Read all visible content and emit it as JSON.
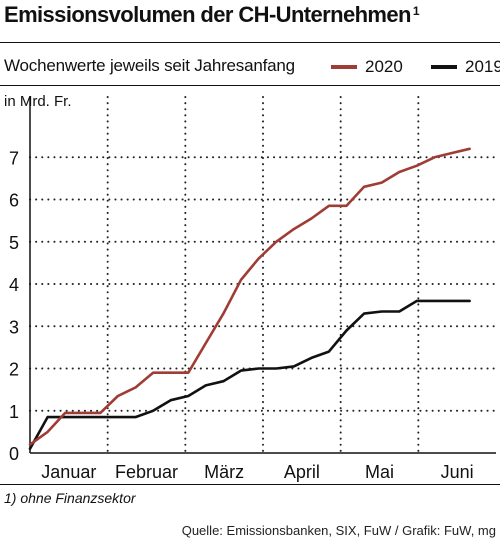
{
  "header": {
    "title": "Emissionsvolumen der CH-Unternehmen",
    "title_footnote_mark": "1",
    "subtitle": "Wochenwerte jeweils seit Jahresanfang"
  },
  "footer": {
    "footnote": "1) ohne Finanzsektor",
    "source": "Quelle: Emissionsbanken, SIX, FuW / Grafik: FuW, mg"
  },
  "chart_data": {
    "type": "line",
    "ylabel": "in Mrd. Fr.",
    "ylim": [
      0,
      8
    ],
    "yticks": [
      "0",
      "1",
      "2",
      "3",
      "4",
      "5",
      "6",
      "7"
    ],
    "xlim": [
      0,
      26.5
    ],
    "categories": [
      "Januar",
      "Februar",
      "März",
      "April",
      "Mai",
      "Juni"
    ],
    "legend_position": "top-right",
    "grid": "dotted",
    "series": [
      {
        "name": "2020",
        "color": "#a03c36",
        "x": [
          0,
          1,
          2,
          3,
          4,
          5,
          6,
          7,
          8,
          9,
          10,
          11,
          12,
          13,
          14,
          15,
          16,
          17,
          18,
          19,
          20,
          21,
          22,
          23,
          24,
          25
        ],
        "values": [
          0.2,
          0.5,
          0.95,
          0.95,
          0.95,
          1.35,
          1.55,
          1.9,
          1.9,
          1.9,
          2.6,
          3.3,
          4.1,
          4.6,
          5.0,
          5.3,
          5.55,
          5.85,
          5.85,
          6.3,
          6.4,
          6.65,
          6.8,
          7.0,
          7.1,
          7.2
        ]
      },
      {
        "name": "2019",
        "color": "#111111",
        "x": [
          0,
          1,
          2,
          3,
          4,
          5,
          6,
          7,
          8,
          9,
          10,
          11,
          12,
          13,
          14,
          15,
          16,
          17,
          18,
          19,
          20,
          21,
          22,
          23,
          24,
          25
        ],
        "values": [
          0.1,
          0.85,
          0.85,
          0.85,
          0.85,
          0.85,
          0.85,
          1.0,
          1.25,
          1.35,
          1.6,
          1.7,
          1.95,
          2.0,
          2.0,
          2.05,
          2.25,
          2.4,
          2.9,
          3.3,
          3.35,
          3.35,
          3.6,
          3.6,
          3.6,
          3.6
        ]
      }
    ]
  }
}
